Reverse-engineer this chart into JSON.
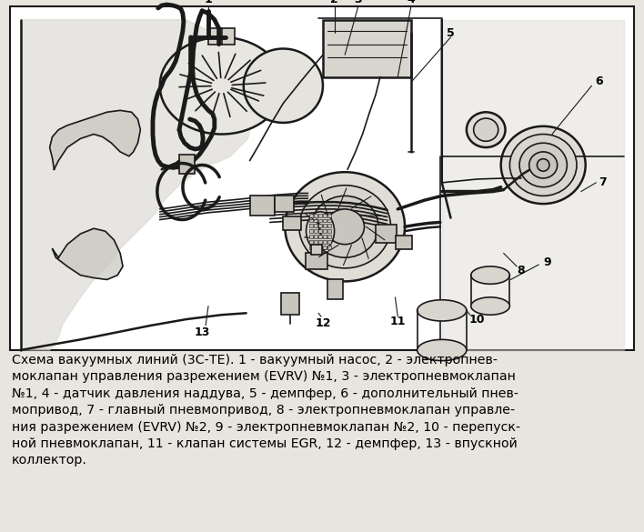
{
  "bg_color": "#ffffff",
  "frame_bg": "#ffffff",
  "line_color": "#1a1a1a",
  "outer_bg": "#e8e5df",
  "caption_text": "Схема вакуумных линий (3С-ТЕ). 1 - вакуумный насос, 2 - электропнев-\nмоклапан управления разрежением (EVRV) №1, 3 - электропневмоклапан\n№1, 4 - датчик давления наддува, 5 - демпфер, 6 - дополнительный пнев-\nмопривод, 7 - главный пневмопривод, 8 - электропневмоклапан управле-\nния разрежением (EVRV) №2, 9 - электропневмоклапан №2, 10 - перепуск-\nной пневмоклапан, 11 - клапан системы EGR, 12 - демпфер, 13 - впускной\nколлектор.",
  "caption_fontsize": 10.2,
  "font_family": "DejaVu Sans"
}
